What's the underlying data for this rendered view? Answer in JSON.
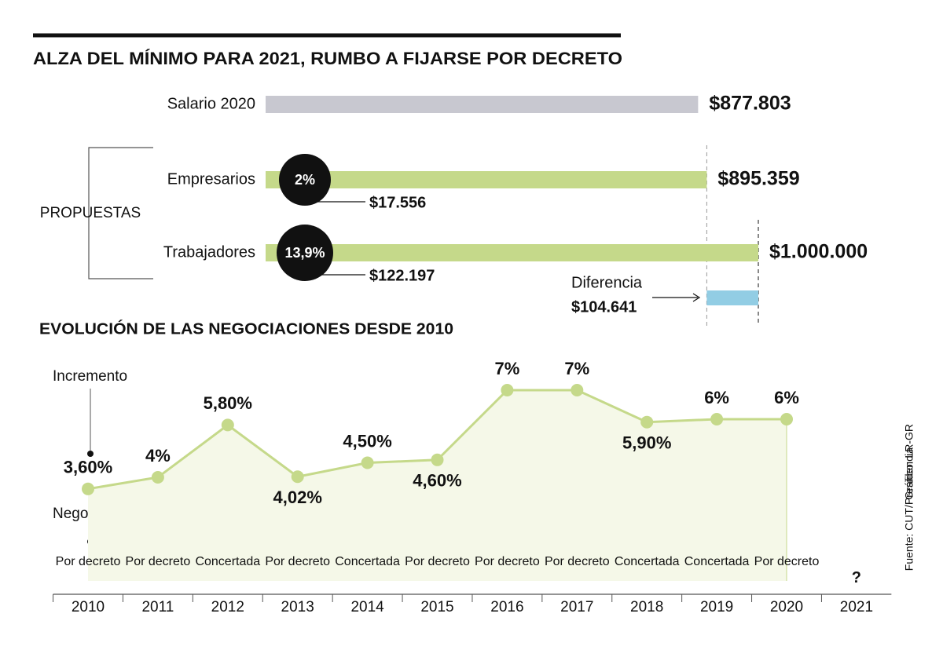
{
  "chart_data": [
    {
      "type": "hbar",
      "title": "ALZA DEL MÍNIMO PARA 2021, RUMBO A FIJARSE POR DECRETO",
      "categories": [
        "Salario 2020",
        "Empresarios",
        "Trabajadores"
      ],
      "values": [
        877803,
        895359,
        1000000
      ],
      "value_labels": [
        "$877.803",
        "$895.359",
        "$1.000.000"
      ],
      "colors": [
        "#c8c8d0",
        "#c5d98a",
        "#c5d98a"
      ],
      "group_label": "PROPUESTAS",
      "increase_pct_labels": [
        null,
        "2%",
        "13,9%"
      ],
      "increase_amount_labels": [
        null,
        "$17.556",
        "$122.197"
      ],
      "difference_title": "Diferencia",
      "difference": 104641,
      "difference_label": "$104.641",
      "difference_color": "#92cde4"
    },
    {
      "type": "line",
      "title": "EVOLUCIÓN DE LAS NEGOCIACIONES DESDE 2010",
      "y_label": "Incremento",
      "negotiation_label": "Negociación",
      "categories": [
        "2010",
        "2011",
        "2012",
        "2013",
        "2014",
        "2015",
        "2016",
        "2017",
        "2018",
        "2019",
        "2020",
        "2021"
      ],
      "values": [
        3.6,
        4,
        5.8,
        4.02,
        4.5,
        4.6,
        7,
        7,
        5.9,
        6,
        6,
        null
      ],
      "value_labels": [
        "3,60%",
        "4%",
        "5,80%",
        "4,02%",
        "4,50%",
        "4,60%",
        "7%",
        "7%",
        "5,90%",
        "6%",
        "6%",
        null
      ],
      "negotiation": [
        "Por decreto",
        "Por decreto",
        "Concertada",
        "Por decreto",
        "Concertada",
        "Por decreto",
        "Por decreto",
        "Por decreto",
        "Concertada",
        "Concertada",
        "Por decreto",
        "?"
      ],
      "color": "#c5d98a",
      "area_color": "#f5f8e8"
    }
  ],
  "credits": {
    "graphic": "Gráfico: LR-GR",
    "source": "Fuente: CUT/Presidencia"
  }
}
